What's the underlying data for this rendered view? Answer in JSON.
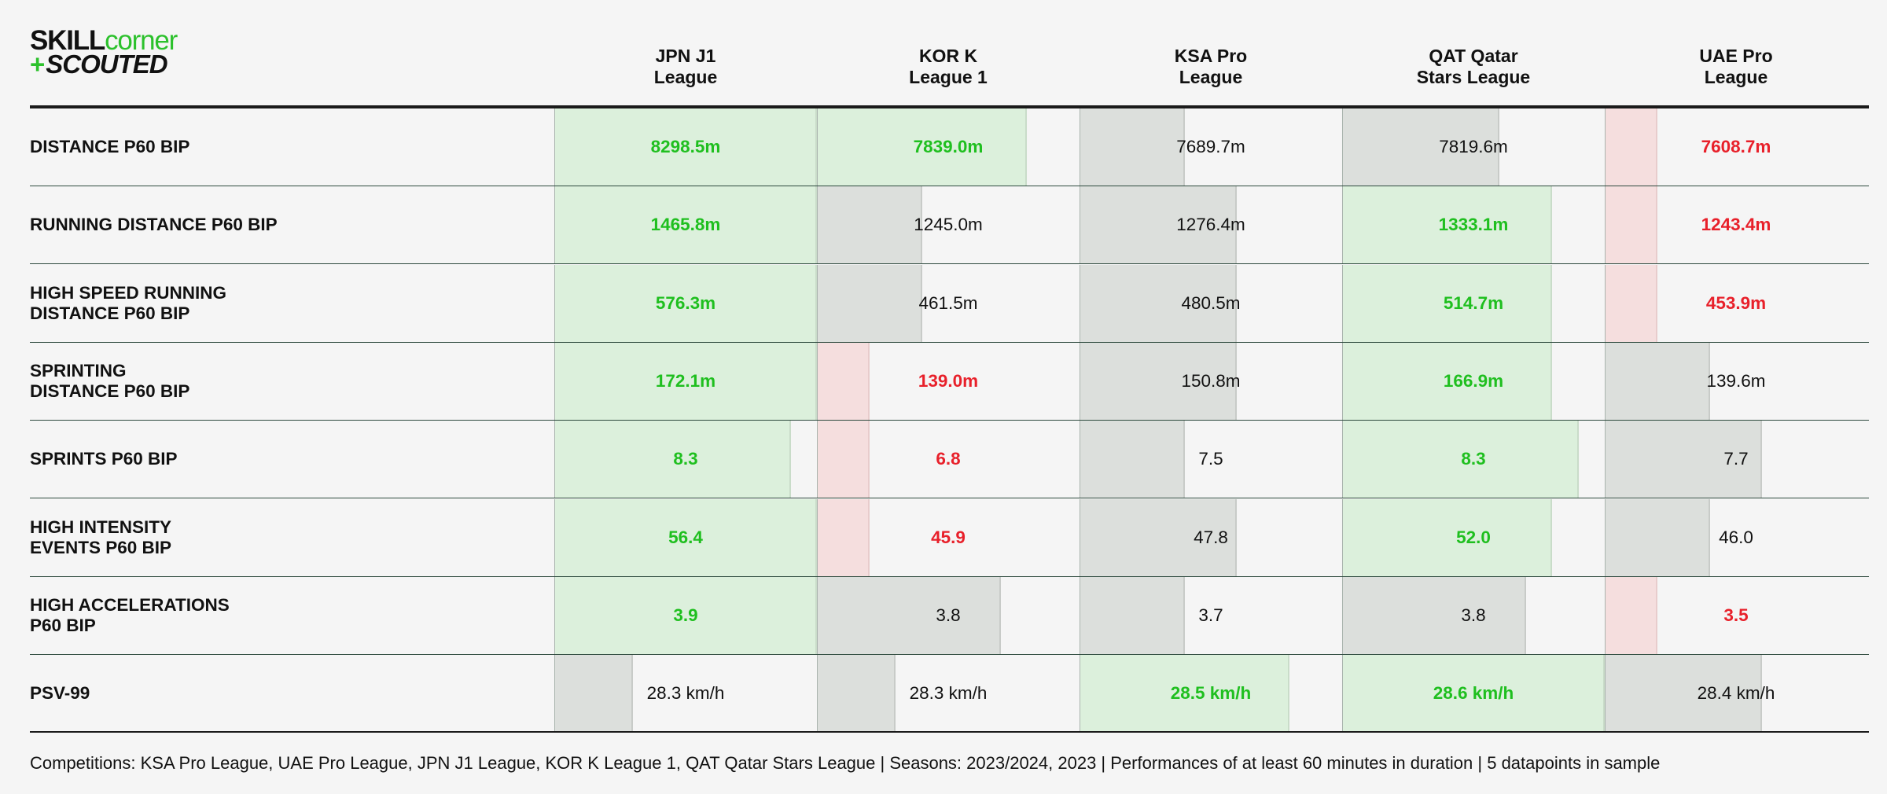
{
  "logo": {
    "part1": "SKILL",
    "part2": "corner",
    "plus": "+",
    "part3": "SCOUTED"
  },
  "columns": [
    {
      "line1": "JPN J1",
      "line2": "League"
    },
    {
      "line1": "KOR K",
      "line2": "League 1"
    },
    {
      "line1": "KSA Pro",
      "line2": "League"
    },
    {
      "line1": "QAT Qatar",
      "line2": "Stars League"
    },
    {
      "line1": "UAE Pro",
      "line2": "League"
    }
  ],
  "colors": {
    "better_text": "#1fbf1f",
    "worse_text": "#e8202a",
    "better_bar": "#dcf0dc",
    "neutral_bar": "#dcdfdc",
    "worse_bar": "#f5dede"
  },
  "chart_data": {
    "type": "table",
    "metrics": [
      {
        "label_lines": [
          "DISTANCE P60 BIP"
        ],
        "cells": [
          {
            "text": "8298.5m",
            "fill": 1.0,
            "status": "better"
          },
          {
            "text": "7839.0m",
            "fill": 0.8,
            "status": "better"
          },
          {
            "text": "7689.7m",
            "fill": 0.4,
            "status": "neutral"
          },
          {
            "text": "7819.6m",
            "fill": 0.6,
            "status": "neutral"
          },
          {
            "text": "7608.7m",
            "fill": 0.2,
            "status": "worse"
          }
        ]
      },
      {
        "label_lines": [
          "RUNNING DISTANCE P60 BIP"
        ],
        "cells": [
          {
            "text": "1465.8m",
            "fill": 1.0,
            "status": "better"
          },
          {
            "text": "1245.0m",
            "fill": 0.4,
            "status": "neutral"
          },
          {
            "text": "1276.4m",
            "fill": 0.6,
            "status": "neutral"
          },
          {
            "text": "1333.1m",
            "fill": 0.8,
            "status": "better"
          },
          {
            "text": "1243.4m",
            "fill": 0.2,
            "status": "worse"
          }
        ]
      },
      {
        "label_lines": [
          "HIGH SPEED RUNNING",
          "DISTANCE P60 BIP"
        ],
        "cells": [
          {
            "text": "576.3m",
            "fill": 1.0,
            "status": "better"
          },
          {
            "text": "461.5m",
            "fill": 0.4,
            "status": "neutral"
          },
          {
            "text": "480.5m",
            "fill": 0.6,
            "status": "neutral"
          },
          {
            "text": "514.7m",
            "fill": 0.8,
            "status": "better"
          },
          {
            "text": "453.9m",
            "fill": 0.2,
            "status": "worse"
          }
        ]
      },
      {
        "label_lines": [
          "SPRINTING",
          "DISTANCE P60 BIP"
        ],
        "cells": [
          {
            "text": "172.1m",
            "fill": 1.0,
            "status": "better"
          },
          {
            "text": "139.0m",
            "fill": 0.2,
            "status": "worse"
          },
          {
            "text": "150.8m",
            "fill": 0.6,
            "status": "neutral"
          },
          {
            "text": "166.9m",
            "fill": 0.8,
            "status": "better"
          },
          {
            "text": "139.6m",
            "fill": 0.4,
            "status": "neutral"
          }
        ]
      },
      {
        "label_lines": [
          "SPRINTS P60 BIP"
        ],
        "cells": [
          {
            "text": "8.3",
            "fill": 0.9,
            "status": "better"
          },
          {
            "text": "6.8",
            "fill": 0.2,
            "status": "worse"
          },
          {
            "text": "7.5",
            "fill": 0.4,
            "status": "neutral"
          },
          {
            "text": "8.3",
            "fill": 0.9,
            "status": "better"
          },
          {
            "text": "7.7",
            "fill": 0.6,
            "status": "neutral"
          }
        ]
      },
      {
        "label_lines": [
          "HIGH INTENSITY",
          "EVENTS P60 BIP"
        ],
        "cells": [
          {
            "text": "56.4",
            "fill": 1.0,
            "status": "better"
          },
          {
            "text": "45.9",
            "fill": 0.2,
            "status": "worse"
          },
          {
            "text": "47.8",
            "fill": 0.6,
            "status": "neutral"
          },
          {
            "text": "52.0",
            "fill": 0.8,
            "status": "better"
          },
          {
            "text": "46.0",
            "fill": 0.4,
            "status": "neutral"
          }
        ]
      },
      {
        "label_lines": [
          "HIGH ACCELERATIONS",
          "P60 BIP"
        ],
        "cells": [
          {
            "text": "3.9",
            "fill": 1.0,
            "status": "better"
          },
          {
            "text": "3.8",
            "fill": 0.7,
            "status": "neutral"
          },
          {
            "text": "3.7",
            "fill": 0.4,
            "status": "neutral"
          },
          {
            "text": "3.8",
            "fill": 0.7,
            "status": "neutral"
          },
          {
            "text": "3.5",
            "fill": 0.2,
            "status": "worse"
          }
        ]
      },
      {
        "label_lines": [
          "PSV-99"
        ],
        "cells": [
          {
            "text": "28.3 km/h",
            "fill": 0.3,
            "status": "neutral"
          },
          {
            "text": "28.3 km/h",
            "fill": 0.3,
            "status": "neutral"
          },
          {
            "text": "28.5 km/h",
            "fill": 0.8,
            "status": "better"
          },
          {
            "text": "28.6 km/h",
            "fill": 1.0,
            "status": "better"
          },
          {
            "text": "28.4 km/h",
            "fill": 0.6,
            "status": "neutral"
          }
        ]
      }
    ]
  },
  "footnote": "Competitions: KSA Pro League, UAE Pro League, JPN J1 League, KOR K League 1, QAT Qatar Stars League | Seasons: 2023/2024, 2023 | Performances of at least 60 minutes in duration | 5 datapoints in sample"
}
